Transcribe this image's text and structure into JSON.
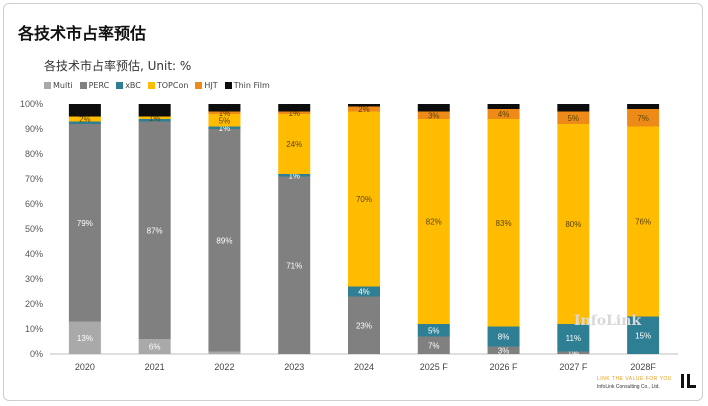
{
  "page": {
    "title": "各技术市占率预估",
    "watermark": "InfoLink",
    "tagline": "LINK THE VALUE FOR YOU",
    "company": "InfoLink Consulting Co., Ltd."
  },
  "colors": {
    "Multi": "#a9a9a9",
    "PERC": "#808080",
    "xBC": "#2e7f93",
    "TOPCon": "#ffbc00",
    "HJT": "#ee8a18",
    "Thin Film": "#0d0d0d"
  },
  "chart_data": {
    "type": "bar",
    "stacked": true,
    "title": "各技术市占率预估, Unit: %",
    "ylim": [
      0,
      100
    ],
    "yticks": [
      "0%",
      "10%",
      "20%",
      "30%",
      "40%",
      "50%",
      "60%",
      "70%",
      "80%",
      "90%",
      "100%"
    ],
    "legend_position": "top-left",
    "grid": false,
    "categories": [
      "2020",
      "2021",
      "2022",
      "2023",
      "2024",
      "2025 F",
      "2026 F",
      "2027 F",
      "2028F"
    ],
    "series": [
      {
        "name": "Multi",
        "values": [
          13,
          6,
          1,
          0,
          0,
          0,
          0,
          0,
          0
        ],
        "labels": [
          "13%",
          "6%",
          "",
          "",
          "",
          "",
          "",
          "",
          ""
        ]
      },
      {
        "name": "PERC",
        "values": [
          79,
          87,
          89,
          71,
          23,
          7,
          3,
          1,
          0
        ],
        "labels": [
          "79%",
          "87%",
          "89%",
          "71%",
          "23%",
          "7%",
          "3%",
          "1%",
          ""
        ]
      },
      {
        "name": "xBC",
        "values": [
          1,
          1,
          1,
          1,
          4,
          5,
          8,
          11,
          15
        ],
        "labels": [
          "",
          "",
          "1%",
          "1%",
          "4%",
          "5%",
          "8%",
          "11%",
          "15%"
        ]
      },
      {
        "name": "TOPCon",
        "values": [
          2,
          1,
          5,
          24,
          70,
          82,
          83,
          80,
          76
        ],
        "labels": [
          "2%",
          "1%",
          "5%",
          "24%",
          "70%",
          "82%",
          "83%",
          "80%",
          "76%"
        ]
      },
      {
        "name": "HJT",
        "values": [
          0,
          0,
          1,
          1,
          2,
          3,
          4,
          5,
          7
        ],
        "labels": [
          "",
          "",
          "1%",
          "1%",
          "2%",
          "3%",
          "4%",
          "5%",
          "7%"
        ]
      },
      {
        "name": "Thin Film",
        "values": [
          5,
          5,
          3,
          3,
          1,
          3,
          2,
          3,
          2
        ],
        "labels": [
          "",
          "",
          "",
          "",
          "",
          "",
          "",
          "",
          ""
        ]
      }
    ]
  }
}
